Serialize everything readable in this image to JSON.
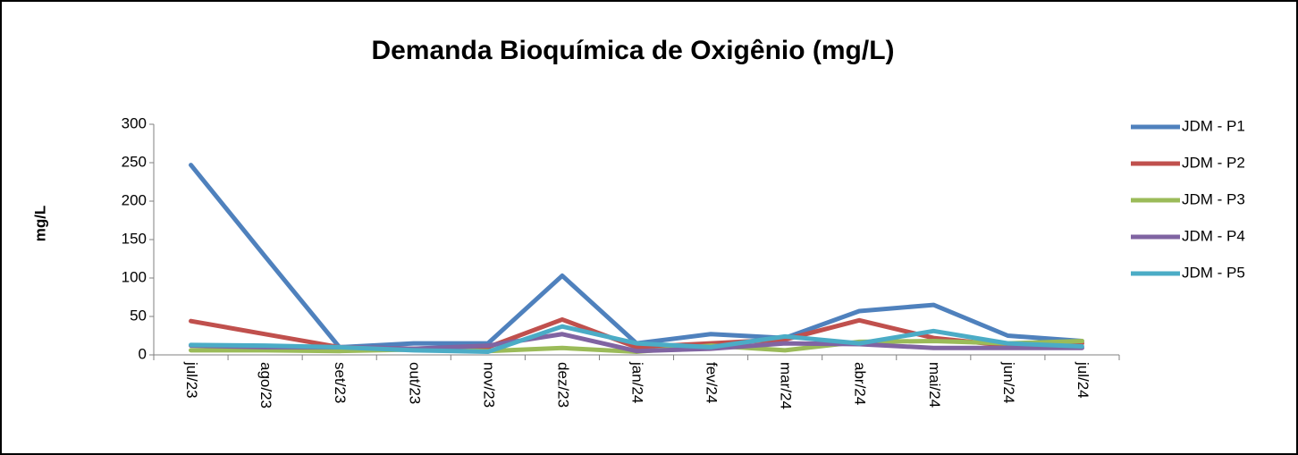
{
  "chart_data": {
    "type": "line",
    "title": "Demanda Bioquímica de Oxigênio (mg/L)",
    "y_label": "mg/L",
    "categories": [
      "jul/23",
      "ago/23",
      "set/23",
      "out/23",
      "nov/23",
      "dez/23",
      "jan/24",
      "fev/24",
      "mar/24",
      "abr/24",
      "mai/24",
      "jun/24",
      "jul/24"
    ],
    "series": [
      {
        "name": "JDM - P1",
        "color": "#4f81bd",
        "values": [
          247,
          128,
          10,
          15,
          15,
          103,
          15,
          27,
          22,
          57,
          65,
          25,
          18
        ]
      },
      {
        "name": "JDM - P2",
        "color": "#c0504d",
        "values": [
          44,
          27,
          10,
          8,
          10,
          46,
          10,
          15,
          20,
          45,
          22,
          12,
          15
        ]
      },
      {
        "name": "JDM - P3",
        "color": "#9bbb59",
        "values": [
          6,
          6,
          5,
          7,
          5,
          9,
          4,
          12,
          6,
          17,
          18,
          15,
          18
        ]
      },
      {
        "name": "JDM - P4",
        "color": "#8064a2",
        "values": [
          12,
          10,
          10,
          8,
          12,
          27,
          5,
          8,
          15,
          14,
          9,
          9,
          9
        ]
      },
      {
        "name": "JDM - P5",
        "color": "#4bacc6",
        "values": [
          13,
          12,
          10,
          6,
          4,
          37,
          15,
          10,
          24,
          15,
          31,
          15,
          11
        ]
      }
    ],
    "ylim": [
      0,
      300
    ],
    "yticks": [
      0,
      50,
      100,
      150,
      200,
      250,
      300
    ],
    "grid": false,
    "legend": "right"
  }
}
